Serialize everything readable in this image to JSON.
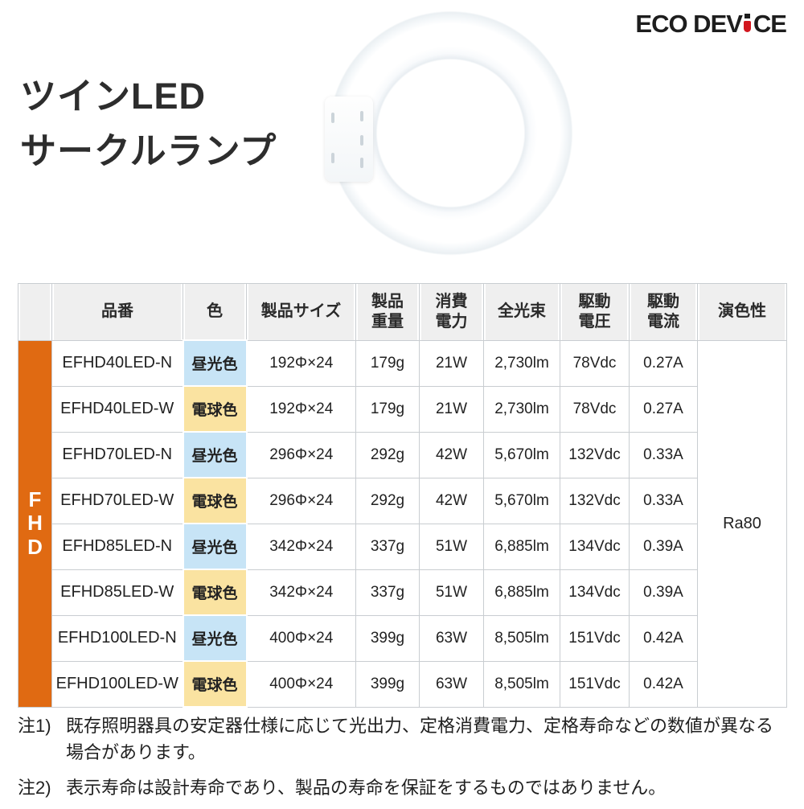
{
  "brand": {
    "logo_part1": "ECO DEV",
    "logo_part2": "CE",
    "logo_full": "ECO DEVICE"
  },
  "title": {
    "line1": "ツインLED",
    "line2": "サークルランプ"
  },
  "table": {
    "group_label": "FHD",
    "headers": [
      "品番",
      "色",
      "製品サイズ",
      "製品\n重量",
      "消費\n電力",
      "全光束",
      "駆動\n電圧",
      "駆動\n電流",
      "演色性"
    ],
    "color_rendering_value": "Ra80",
    "rows": [
      {
        "model": "EFHD40LED-N",
        "color": "昼光色",
        "color_type": "daylight",
        "size": "192Φ×24",
        "weight": "179g",
        "power": "21W",
        "flux": "2,730lm",
        "voltage": "78Vdc",
        "current": "0.27A"
      },
      {
        "model": "EFHD40LED-W",
        "color": "電球色",
        "color_type": "bulb",
        "size": "192Φ×24",
        "weight": "179g",
        "power": "21W",
        "flux": "2,730lm",
        "voltage": "78Vdc",
        "current": "0.27A"
      },
      {
        "model": "EFHD70LED-N",
        "color": "昼光色",
        "color_type": "daylight",
        "size": "296Φ×24",
        "weight": "292g",
        "power": "42W",
        "flux": "5,670lm",
        "voltage": "132Vdc",
        "current": "0.33A"
      },
      {
        "model": "EFHD70LED-W",
        "color": "電球色",
        "color_type": "bulb",
        "size": "296Φ×24",
        "weight": "292g",
        "power": "42W",
        "flux": "5,670lm",
        "voltage": "132Vdc",
        "current": "0.33A"
      },
      {
        "model": "EFHD85LED-N",
        "color": "昼光色",
        "color_type": "daylight",
        "size": "342Φ×24",
        "weight": "337g",
        "power": "51W",
        "flux": "6,885lm",
        "voltage": "134Vdc",
        "current": "0.39A"
      },
      {
        "model": "EFHD85LED-W",
        "color": "電球色",
        "color_type": "bulb",
        "size": "342Φ×24",
        "weight": "337g",
        "power": "51W",
        "flux": "6,885lm",
        "voltage": "134Vdc",
        "current": "0.39A"
      },
      {
        "model": "EFHD100LED-N",
        "color": "昼光色",
        "color_type": "daylight",
        "size": "400Φ×24",
        "weight": "399g",
        "power": "63W",
        "flux": "8,505lm",
        "voltage": "151Vdc",
        "current": "0.42A"
      },
      {
        "model": "EFHD100LED-W",
        "color": "電球色",
        "color_type": "bulb",
        "size": "400Φ×24",
        "weight": "399g",
        "power": "63W",
        "flux": "8,505lm",
        "voltage": "151Vdc",
        "current": "0.42A"
      }
    ]
  },
  "notes": [
    {
      "label": "注1)",
      "text": "既存照明器具の安定器仕様に応じて光出力、定格消費電力、定格寿命などの数値が異なる場合があります。"
    },
    {
      "label": "注2)",
      "text": "表示寿命は設計寿命であり、製品の寿命を保証をするものではありません。"
    }
  ],
  "colors": {
    "accent_orange": "#e06a12",
    "daylight_blue": "#c7e4f6",
    "bulb_yellow": "#fae3a1",
    "header_gray": "#efefef",
    "border_gray": "#c9cdd1",
    "logo_red": "#d2171e"
  }
}
